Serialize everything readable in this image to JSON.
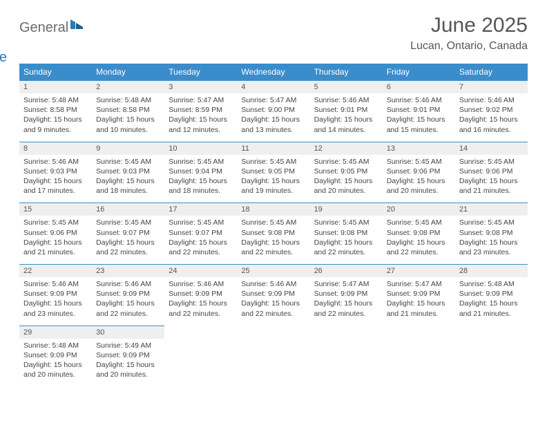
{
  "brand": {
    "word1": "General",
    "word2": "Blue",
    "icon_fill": "#2a7ab8"
  },
  "header": {
    "title": "June 2025",
    "location": "Lucan, Ontario, Canada"
  },
  "colors": {
    "header_bg": "#3a8dca",
    "header_fg": "#ffffff",
    "daynum_bg": "#efefef",
    "rule": "#3a8dca",
    "text": "#444444"
  },
  "weekdays": [
    "Sunday",
    "Monday",
    "Tuesday",
    "Wednesday",
    "Thursday",
    "Friday",
    "Saturday"
  ],
  "weeks": [
    [
      {
        "n": "1",
        "sr": "5:48 AM",
        "ss": "8:58 PM",
        "dl": "15 hours and 9 minutes."
      },
      {
        "n": "2",
        "sr": "5:48 AM",
        "ss": "8:58 PM",
        "dl": "15 hours and 10 minutes."
      },
      {
        "n": "3",
        "sr": "5:47 AM",
        "ss": "8:59 PM",
        "dl": "15 hours and 12 minutes."
      },
      {
        "n": "4",
        "sr": "5:47 AM",
        "ss": "9:00 PM",
        "dl": "15 hours and 13 minutes."
      },
      {
        "n": "5",
        "sr": "5:46 AM",
        "ss": "9:01 PM",
        "dl": "15 hours and 14 minutes."
      },
      {
        "n": "6",
        "sr": "5:46 AM",
        "ss": "9:01 PM",
        "dl": "15 hours and 15 minutes."
      },
      {
        "n": "7",
        "sr": "5:46 AM",
        "ss": "9:02 PM",
        "dl": "15 hours and 16 minutes."
      }
    ],
    [
      {
        "n": "8",
        "sr": "5:46 AM",
        "ss": "9:03 PM",
        "dl": "15 hours and 17 minutes."
      },
      {
        "n": "9",
        "sr": "5:45 AM",
        "ss": "9:03 PM",
        "dl": "15 hours and 18 minutes."
      },
      {
        "n": "10",
        "sr": "5:45 AM",
        "ss": "9:04 PM",
        "dl": "15 hours and 18 minutes."
      },
      {
        "n": "11",
        "sr": "5:45 AM",
        "ss": "9:05 PM",
        "dl": "15 hours and 19 minutes."
      },
      {
        "n": "12",
        "sr": "5:45 AM",
        "ss": "9:05 PM",
        "dl": "15 hours and 20 minutes."
      },
      {
        "n": "13",
        "sr": "5:45 AM",
        "ss": "9:06 PM",
        "dl": "15 hours and 20 minutes."
      },
      {
        "n": "14",
        "sr": "5:45 AM",
        "ss": "9:06 PM",
        "dl": "15 hours and 21 minutes."
      }
    ],
    [
      {
        "n": "15",
        "sr": "5:45 AM",
        "ss": "9:06 PM",
        "dl": "15 hours and 21 minutes."
      },
      {
        "n": "16",
        "sr": "5:45 AM",
        "ss": "9:07 PM",
        "dl": "15 hours and 22 minutes."
      },
      {
        "n": "17",
        "sr": "5:45 AM",
        "ss": "9:07 PM",
        "dl": "15 hours and 22 minutes."
      },
      {
        "n": "18",
        "sr": "5:45 AM",
        "ss": "9:08 PM",
        "dl": "15 hours and 22 minutes."
      },
      {
        "n": "19",
        "sr": "5:45 AM",
        "ss": "9:08 PM",
        "dl": "15 hours and 22 minutes."
      },
      {
        "n": "20",
        "sr": "5:45 AM",
        "ss": "9:08 PM",
        "dl": "15 hours and 22 minutes."
      },
      {
        "n": "21",
        "sr": "5:45 AM",
        "ss": "9:08 PM",
        "dl": "15 hours and 23 minutes."
      }
    ],
    [
      {
        "n": "22",
        "sr": "5:46 AM",
        "ss": "9:09 PM",
        "dl": "15 hours and 23 minutes."
      },
      {
        "n": "23",
        "sr": "5:46 AM",
        "ss": "9:09 PM",
        "dl": "15 hours and 22 minutes."
      },
      {
        "n": "24",
        "sr": "5:46 AM",
        "ss": "9:09 PM",
        "dl": "15 hours and 22 minutes."
      },
      {
        "n": "25",
        "sr": "5:46 AM",
        "ss": "9:09 PM",
        "dl": "15 hours and 22 minutes."
      },
      {
        "n": "26",
        "sr": "5:47 AM",
        "ss": "9:09 PM",
        "dl": "15 hours and 22 minutes."
      },
      {
        "n": "27",
        "sr": "5:47 AM",
        "ss": "9:09 PM",
        "dl": "15 hours and 21 minutes."
      },
      {
        "n": "28",
        "sr": "5:48 AM",
        "ss": "9:09 PM",
        "dl": "15 hours and 21 minutes."
      }
    ],
    [
      {
        "n": "29",
        "sr": "5:48 AM",
        "ss": "9:09 PM",
        "dl": "15 hours and 20 minutes."
      },
      {
        "n": "30",
        "sr": "5:49 AM",
        "ss": "9:09 PM",
        "dl": "15 hours and 20 minutes."
      },
      null,
      null,
      null,
      null,
      null
    ]
  ],
  "labels": {
    "sunrise": "Sunrise:",
    "sunset": "Sunset:",
    "daylight": "Daylight:"
  }
}
